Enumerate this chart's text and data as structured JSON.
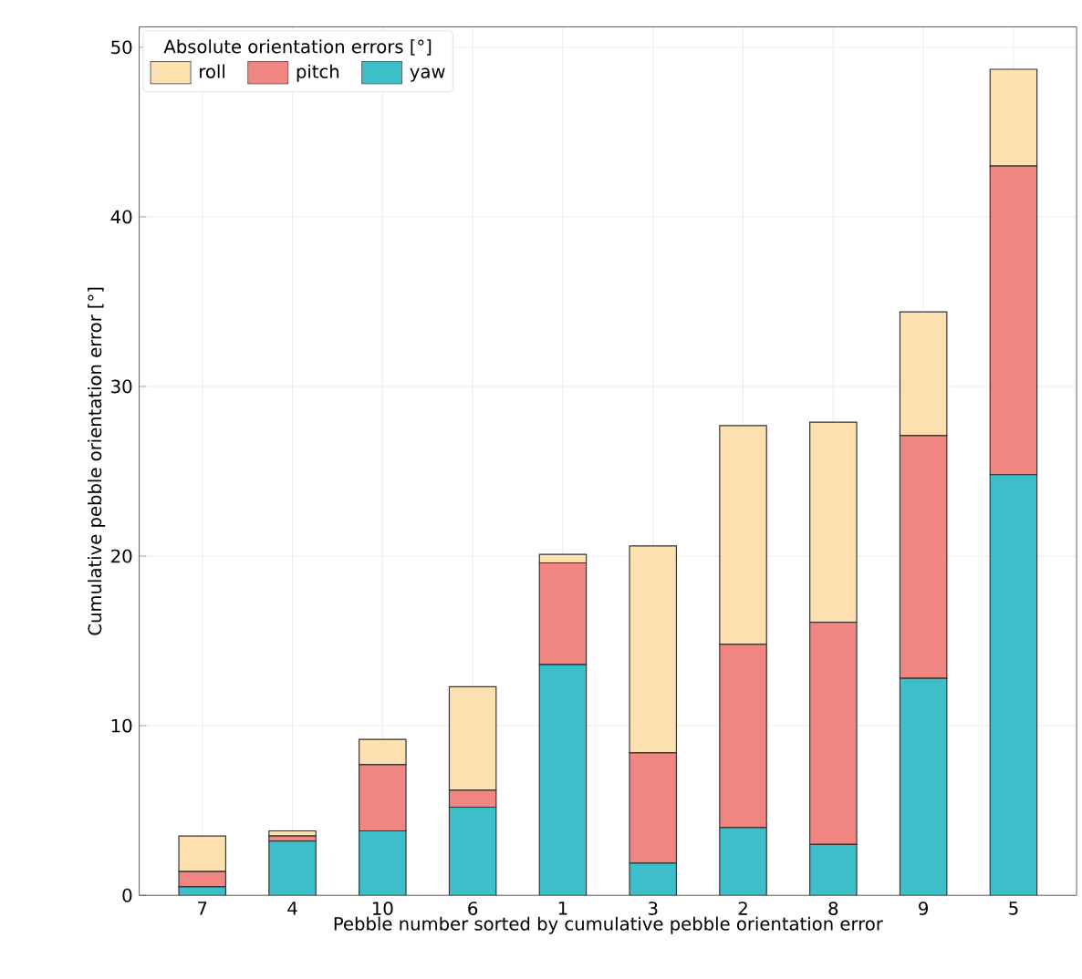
{
  "chart_data": {
    "type": "bar",
    "stacked": true,
    "xlabel": "Pebble number sorted by cumulative pebble orientation error",
    "ylabel": "Cumulative pebble orientation error [°]",
    "legend_title": "Absolute orientation errors [°]",
    "categories": [
      "7",
      "4",
      "10",
      "6",
      "1",
      "3",
      "2",
      "8",
      "9",
      "5"
    ],
    "series": [
      {
        "name": "yaw",
        "color": "#3cbfc8",
        "values": [
          0.5,
          3.2,
          3.8,
          5.2,
          13.6,
          1.9,
          4.0,
          3.0,
          12.8,
          24.8
        ]
      },
      {
        "name": "pitch",
        "color": "#f08682",
        "values": [
          0.9,
          0.3,
          3.9,
          1.0,
          6.0,
          6.5,
          10.8,
          13.1,
          14.3,
          18.2
        ]
      },
      {
        "name": "roll",
        "color": "#fde0b0",
        "values": [
          2.1,
          0.3,
          1.5,
          6.1,
          0.5,
          12.2,
          12.9,
          11.8,
          7.3,
          5.7
        ]
      }
    ],
    "ylim": [
      0,
      51.2
    ],
    "yticks": [
      0,
      10,
      20,
      30,
      40,
      50
    ],
    "grid": true,
    "legend": "top left"
  }
}
